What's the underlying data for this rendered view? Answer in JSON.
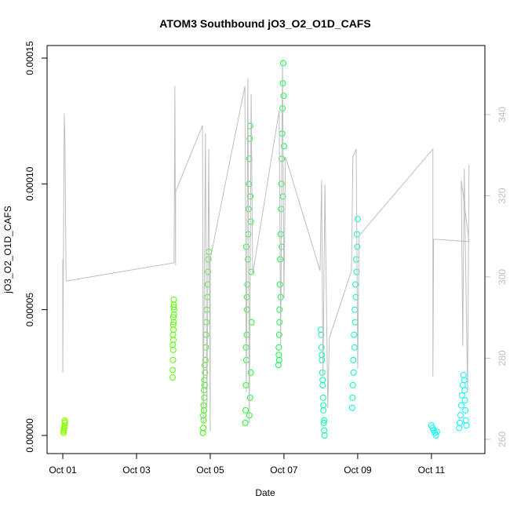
{
  "chart_data": {
    "type": "scatter",
    "title": "ATOM3 Southbound jO3_O2_O1D_CAFS",
    "x_label": "Date",
    "y_label": "jO3_O2_O1D_CAFS",
    "xlim": [
      0.574,
      12.45
    ],
    "xticks": [
      {
        "value": 1,
        "label": "Oct 01"
      },
      {
        "value": 3,
        "label": "Oct 03"
      },
      {
        "value": 5,
        "label": "Oct 05"
      },
      {
        "value": 7,
        "label": "Oct 07"
      },
      {
        "value": 9,
        "label": "Oct 09"
      },
      {
        "value": 11,
        "label": "Oct 11"
      }
    ],
    "ylim": [
      -7.2e-06,
      0.000155
    ],
    "yticks": [
      {
        "value": 0,
        "label": "0.00000"
      },
      {
        "value": 5e-05,
        "label": "0.00005"
      },
      {
        "value": 0.0001,
        "label": "0.00010"
      },
      {
        "value": 0.00015,
        "label": "0.00015"
      }
    ],
    "y2lim": [
      256.5,
      357
    ],
    "y2ticks": [
      260,
      280,
      300,
      320,
      340
    ],
    "y2_color": "#bebebe",
    "series": [
      {
        "mark": "point",
        "color": "#8cff00",
        "x": [
          1.02,
          1.03,
          1.04,
          1.05,
          1.06,
          1.05,
          1.03,
          1.04,
          1.02,
          1.06
        ],
        "values": [
          1e-06,
          2e-06,
          3e-06,
          4e-06,
          5e-06,
          6e-06,
          2.5e-06,
          3.5e-06,
          1.5e-06,
          5.5e-06
        ]
      },
      {
        "mark": "point",
        "color": "#55ff00",
        "x": [
          3.98,
          3.985,
          3.99,
          3.995,
          4.0,
          4.005,
          4.01,
          4.015,
          4.02,
          4.015,
          4.01,
          4.005,
          4.0,
          3.995,
          3.99,
          3.985
        ],
        "values": [
          2.3e-05,
          2.6e-05,
          3e-05,
          3.4e-05,
          3.8e-05,
          4.2e-05,
          4.5e-05,
          4.8e-05,
          5e-05,
          5.2e-05,
          5.4e-05,
          5.1e-05,
          4.7e-05,
          4.4e-05,
          4e-05,
          3.6e-05
        ]
      },
      {
        "mark": "point",
        "color": "#33ff00",
        "x": [
          4.8,
          4.81,
          4.82,
          4.83,
          4.84,
          4.85,
          4.86,
          4.87,
          4.88,
          4.89,
          4.9,
          4.91,
          4.92,
          4.93,
          4.94,
          4.95,
          4.96,
          4.85,
          4.83,
          4.81,
          4.82,
          4.84
        ],
        "values": [
          1e-06,
          3e-06,
          6e-06,
          1e-05,
          1.5e-05,
          2e-05,
          2.5e-05,
          3e-05,
          3.5e-05,
          4e-05,
          4.5e-05,
          5e-05,
          5.5e-05,
          6e-05,
          6.5e-05,
          7e-05,
          7.3e-05,
          2.8e-05,
          1.8e-05,
          8e-06,
          1.2e-05,
          2.2e-05
        ]
      },
      {
        "mark": "point",
        "color": "#11ff22",
        "x": [
          5.95,
          5.96,
          5.97,
          5.98,
          5.99,
          6.0,
          6.01,
          6.02,
          6.03,
          6.04,
          6.05,
          6.06,
          6.07,
          6.08,
          6.09,
          6.1,
          6.11,
          6.12,
          6.1,
          6.08,
          6.06,
          6.0,
          5.98,
          5.97
        ],
        "values": [
          5e-06,
          1e-05,
          2e-05,
          3e-05,
          4e-05,
          5e-05,
          6e-05,
          7e-05,
          8e-05,
          9e-05,
          0.0001,
          0.00011,
          0.000118,
          0.000123,
          9.5e-05,
          8.5e-05,
          6.5e-05,
          4.5e-05,
          2.5e-05,
          1.5e-05,
          8e-06,
          5.5e-05,
          7.5e-05,
          3.5e-05
        ]
      },
      {
        "mark": "point",
        "color": "#00ff44",
        "x": [
          6.85,
          6.86,
          6.87,
          6.88,
          6.89,
          6.9,
          6.91,
          6.92,
          6.93,
          6.94,
          6.95,
          6.96,
          6.97,
          6.98,
          6.99,
          7.0,
          6.97,
          6.94,
          6.91,
          6.88,
          6.86,
          6.87
        ],
        "values": [
          2.8e-05,
          3.2e-05,
          4e-05,
          5e-05,
          6e-05,
          7e-05,
          8e-05,
          9e-05,
          0.0001,
          0.00011,
          0.00012,
          0.00013,
          0.00014,
          0.000148,
          0.000135,
          0.000115,
          9.5e-05,
          7.5e-05,
          5.5e-05,
          4.5e-05,
          3.5e-05,
          3e-05
        ]
      },
      {
        "mark": "point",
        "color": "#00ffaa",
        "x": [
          8.1,
          8.09,
          8.08,
          8.07,
          8.06,
          8.05,
          8.04,
          8.03,
          8.02,
          8.01,
          8.0,
          8.03,
          8.05,
          8.07,
          8.09
        ],
        "values": [
          0,
          2e-06,
          5e-06,
          1e-05,
          1.5e-05,
          2e-05,
          2.5e-05,
          3e-05,
          3.5e-05,
          4e-05,
          4.2e-05,
          3.2e-05,
          2.2e-05,
          1.2e-05,
          6e-06
        ]
      },
      {
        "mark": "point",
        "color": "#00ffbb",
        "x": [
          8.85,
          8.86,
          8.87,
          8.88,
          8.9,
          8.92,
          8.94,
          8.96,
          8.98,
          9.0,
          8.99,
          8.95,
          8.91,
          8.89,
          8.93,
          8.97
        ],
        "values": [
          1.1e-05,
          1.5e-05,
          2e-05,
          3e-05,
          4e-05,
          5e-05,
          6e-05,
          7e-05,
          8e-05,
          8.6e-05,
          7.5e-05,
          5.5e-05,
          3.5e-05,
          2.5e-05,
          4.5e-05,
          6.5e-05
        ]
      },
      {
        "mark": "point",
        "color": "#00ffee",
        "x": [
          11.0,
          11.03,
          11.06,
          11.09,
          11.12,
          11.15
        ],
        "values": [
          4e-06,
          3e-06,
          2e-06,
          1e-06,
          0,
          1.5e-06
        ]
      },
      {
        "mark": "point",
        "color": "#00ffff",
        "x": [
          11.75,
          11.77,
          11.79,
          11.81,
          11.83,
          11.85,
          11.87,
          11.89,
          11.9,
          11.91,
          11.92,
          11.93,
          11.95
        ],
        "values": [
          3e-06,
          5e-06,
          8e-06,
          1.2e-05,
          1.6e-05,
          2e-05,
          2.4e-05,
          2.2e-05,
          1.8e-05,
          1.4e-05,
          1e-05,
          6e-06,
          4e-06
        ]
      },
      {
        "mark": "line",
        "axis": "y2",
        "color": "#bebebe",
        "x": [
          1.0,
          1.0,
          1.04,
          1.06,
          1.09,
          4.02,
          4.04,
          4.06,
          4.06,
          4.79,
          4.81,
          4.87,
          4.91,
          4.96,
          5.0,
          5.0,
          5.94,
          5.98,
          6.02,
          6.06,
          6.11,
          6.15,
          6.87,
          6.91,
          6.96,
          7.0,
          7.04,
          7.98,
          8.02,
          8.06,
          8.11,
          8.19,
          8.23,
          8.83,
          8.87,
          8.96,
          9.0,
          9.04,
          11.04,
          11.04,
          11.06,
          12.02,
          11.81,
          11.85,
          11.89,
          11.98,
          12.02
        ],
        "values": [
          304.4,
          276.4,
          340.2,
          333.4,
          299,
          303.5,
          347,
          302.9,
          321,
          337.3,
          263.9,
          335.4,
          267.7,
          331.5,
          262,
          304.4,
          347,
          271.6,
          348.9,
          263.9,
          345,
          300.6,
          341,
          283,
          353.7,
          294.8,
          329.6,
          301.5,
          323.8,
          275.5,
          322.8,
          267.7,
          285,
          301.5,
          329.6,
          331.5,
          277.4,
          310.2,
          331.5,
          275.5,
          309.3,
          308.7,
          323.8,
          283,
          326.7,
          271.6,
          327.6
        ]
      }
    ]
  }
}
